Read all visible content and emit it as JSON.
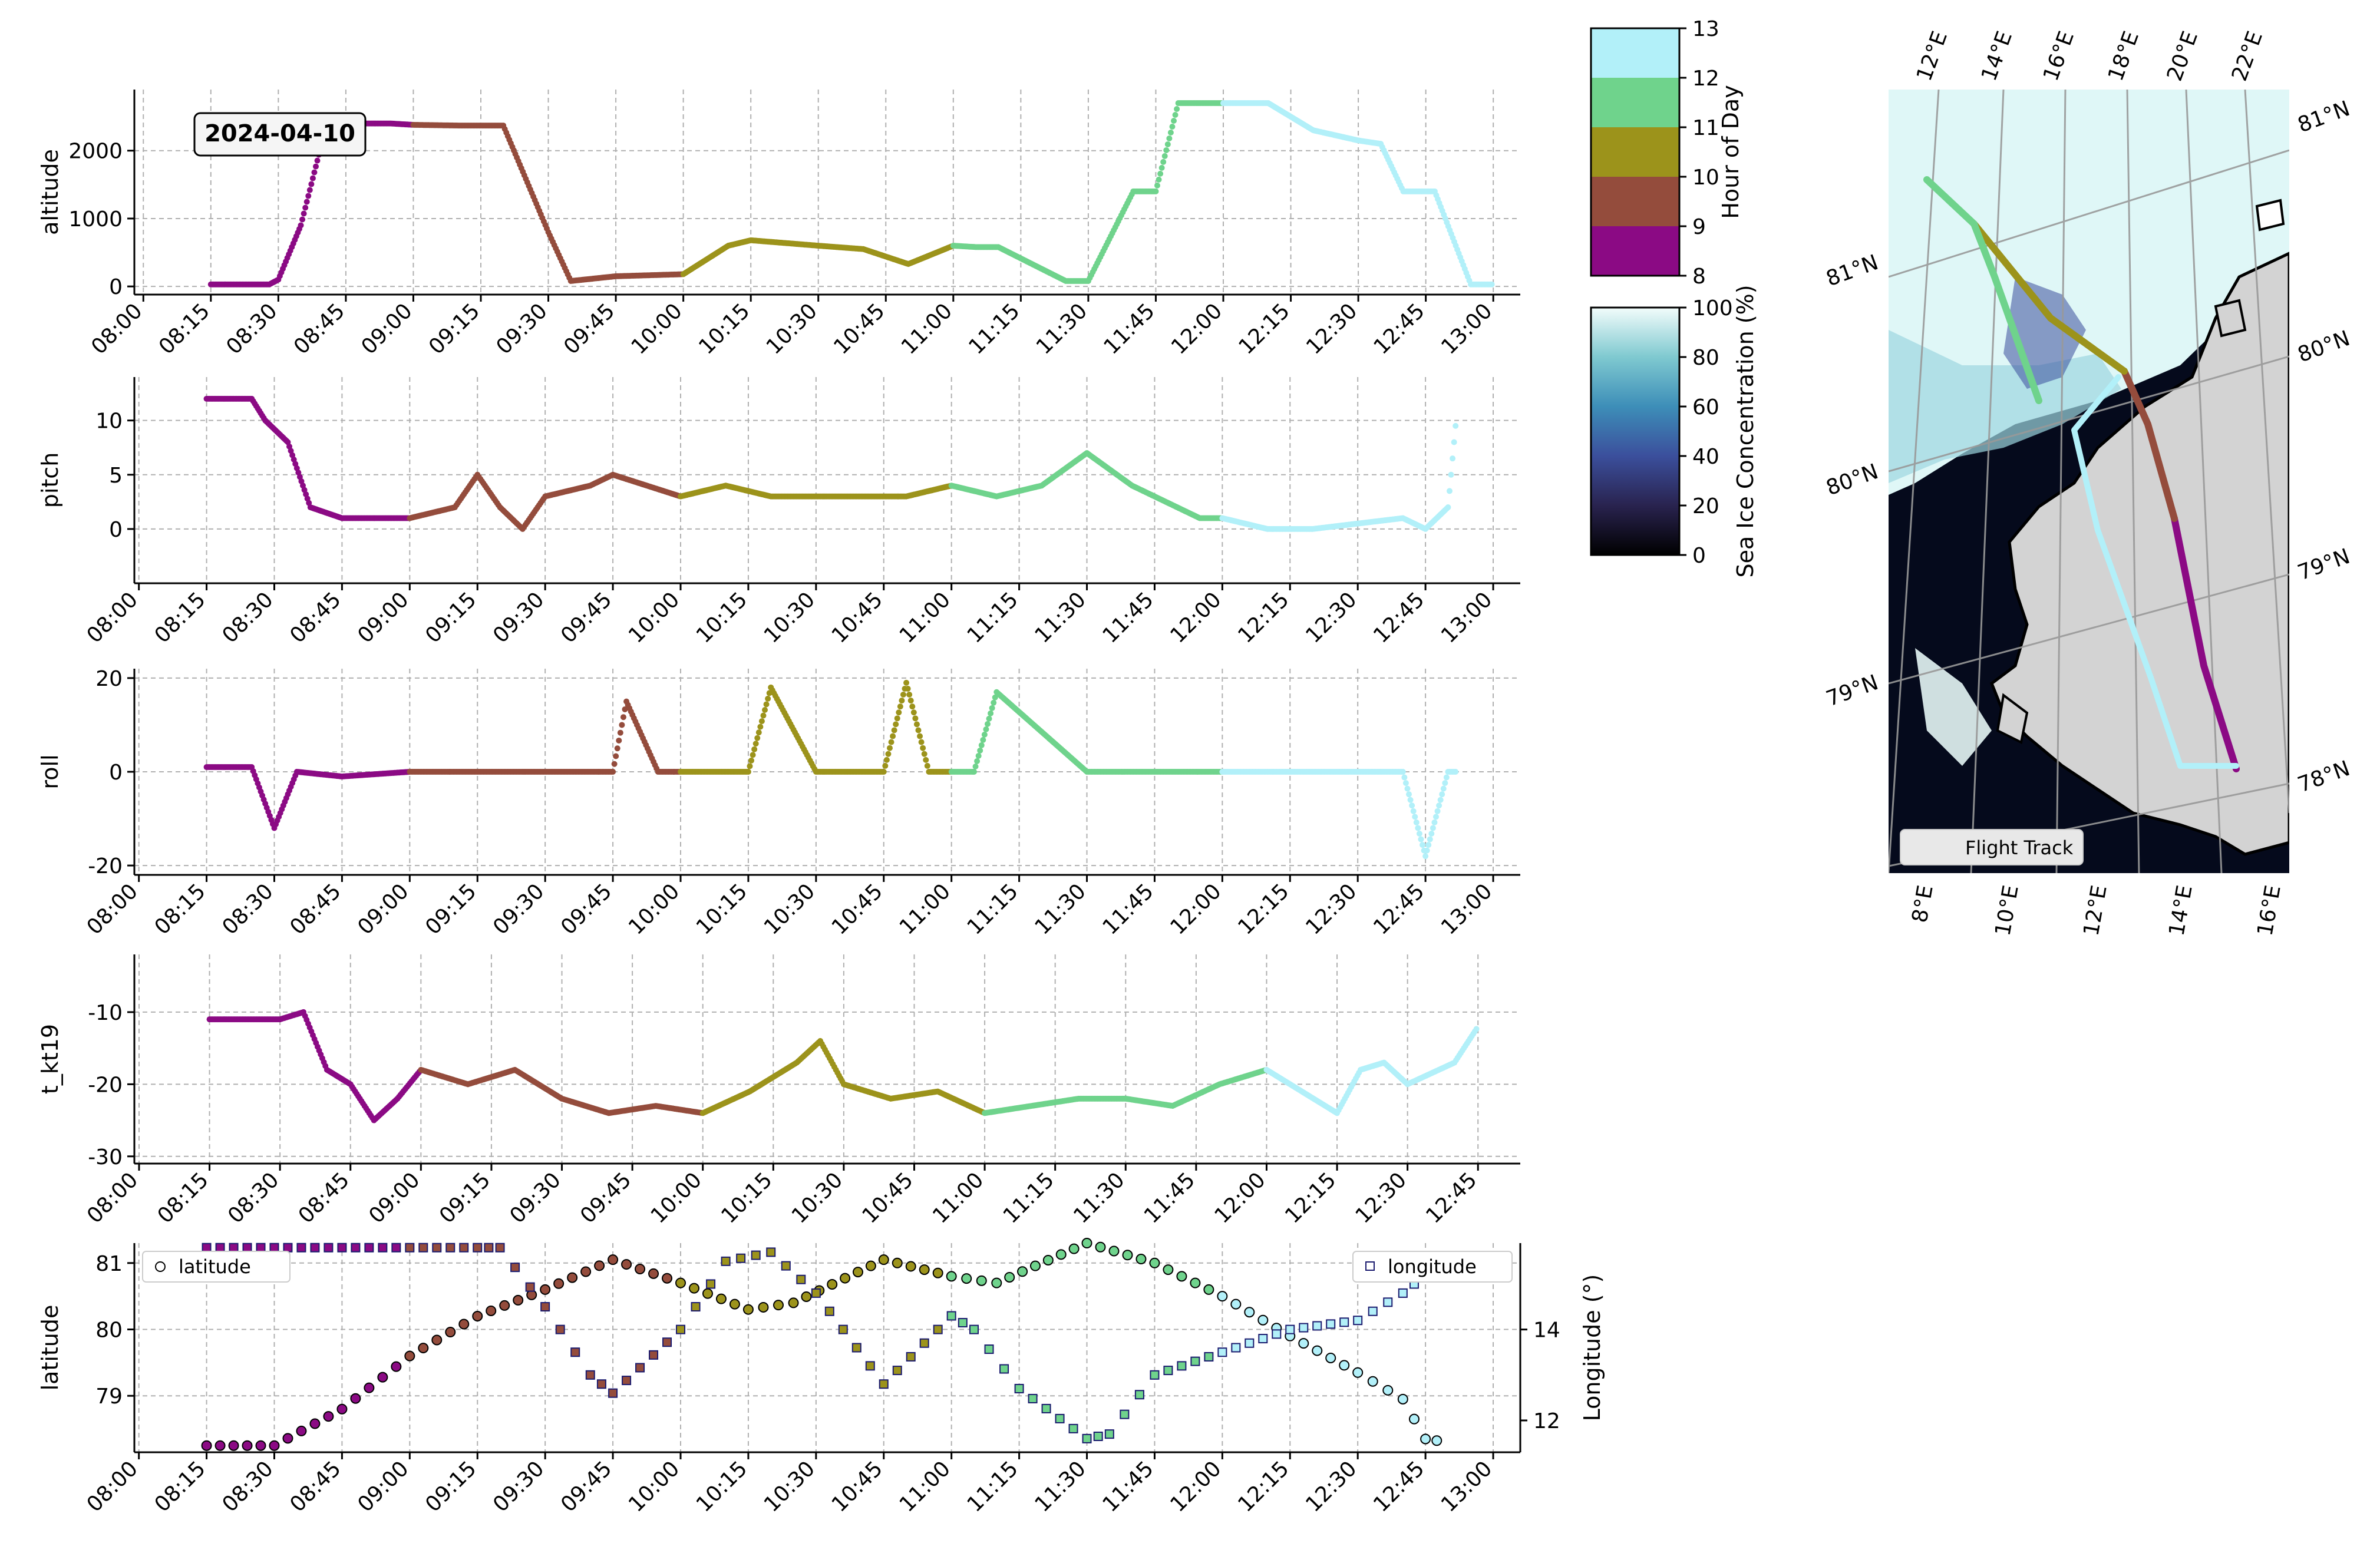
{
  "figure": {
    "date_badge": "2024-04-10",
    "hour_colors": [
      "#8b0a84",
      "#944c3c",
      "#9c931b",
      "#6fd38c",
      "#b2f0f9"
    ]
  },
  "hour_colorbar": {
    "label": "Hour of Day",
    "ticks": [
      "8",
      "9",
      "10",
      "11",
      "12",
      "13"
    ]
  },
  "ice_colorbar": {
    "label": "Sea Ice Concentration (%)",
    "ticks": [
      "0",
      "20",
      "40",
      "60",
      "80",
      "100"
    ]
  },
  "map": {
    "legend_label": "Flight Track",
    "top_lon_labels": [
      "12°E",
      "14°E",
      "16°E",
      "18°E",
      "20°E",
      "22°E"
    ],
    "bottom_lon_labels": [
      "8°E",
      "10°E",
      "12°E",
      "14°E",
      "16°E"
    ],
    "left_lat_labels": [
      "81°N",
      "80°N",
      "79°N"
    ],
    "right_lat_labels": [
      "81°N",
      "80°N",
      "79°N",
      "78°N"
    ],
    "colors": {
      "ocean": "#050a1c",
      "land": "#d3d3d3",
      "ice": "#dff7f7",
      "grid": "#999999"
    }
  },
  "chart_data": [
    {
      "type": "scatter",
      "ylabel": "altitude",
      "ylim": [
        -120,
        2900
      ],
      "yticks": [
        0,
        1000,
        2000
      ],
      "xticks": [
        "08:00",
        "08:15",
        "08:30",
        "08:45",
        "09:00",
        "09:15",
        "09:30",
        "09:45",
        "10:00",
        "10:15",
        "10:30",
        "10:45",
        "11:00",
        "11:15",
        "11:30",
        "11:45",
        "12:00",
        "12:15",
        "12:30",
        "12:45",
        "13:00"
      ],
      "xlim": [
        "07:58",
        "13:06"
      ],
      "grid": true,
      "series": [
        {
          "x": [
            "08:15",
            "08:28",
            "08:30",
            "08:35",
            "08:40",
            "08:45",
            "08:55",
            "09:00",
            "09:10",
            "09:20",
            "09:30",
            "09:35",
            "09:45",
            "10:00",
            "10:10",
            "10:15",
            "10:30",
            "10:40",
            "10:50",
            "11:00",
            "11:05",
            "11:10",
            "11:25",
            "11:30",
            "11:40",
            "11:45",
            "11:50",
            "12:00",
            "12:10",
            "12:20",
            "12:30",
            "12:35",
            "12:40",
            "12:47",
            "12:55",
            "13:00"
          ],
          "y": [
            30,
            30,
            100,
            900,
            2200,
            2400,
            2400,
            2380,
            2370,
            2370,
            800,
            80,
            150,
            180,
            600,
            680,
            600,
            550,
            330,
            600,
            580,
            580,
            80,
            80,
            1400,
            1400,
            2700,
            2700,
            2700,
            2300,
            2150,
            2100,
            1400,
            1400,
            30,
            30
          ]
        }
      ]
    },
    {
      "type": "scatter",
      "ylabel": "pitch",
      "ylim": [
        -5,
        14
      ],
      "yticks": [
        0,
        5,
        10
      ],
      "xticks": [
        "08:00",
        "08:15",
        "08:30",
        "08:45",
        "09:00",
        "09:15",
        "09:30",
        "09:45",
        "10:00",
        "10:15",
        "10:30",
        "10:45",
        "11:00",
        "11:15",
        "11:30",
        "11:45",
        "12:00",
        "12:15",
        "12:30",
        "12:45",
        "13:00"
      ],
      "xlim": [
        "07:59",
        "13:06"
      ],
      "grid": true,
      "series": [
        {
          "x": [
            "08:15",
            "08:25",
            "08:28",
            "08:33",
            "08:38",
            "08:45",
            "09:00",
            "09:10",
            "09:15",
            "09:20",
            "09:25",
            "09:30",
            "09:40",
            "09:45",
            "10:00",
            "10:10",
            "10:20",
            "10:30",
            "10:40",
            "10:50",
            "11:00",
            "11:10",
            "11:20",
            "11:30",
            "11:40",
            "11:55",
            "12:00",
            "12:10",
            "12:20",
            "12:30",
            "12:40",
            "12:45",
            "12:50",
            "12:52"
          ],
          "y": [
            12,
            12,
            10,
            8,
            2,
            1,
            1,
            2,
            5,
            2,
            0,
            3,
            4,
            5,
            3,
            4,
            3,
            3,
            3,
            3,
            4,
            3,
            4,
            7,
            4,
            1,
            1,
            0,
            0,
            0.5,
            1,
            0,
            2,
            11
          ]
        }
      ]
    },
    {
      "type": "scatter",
      "ylabel": "roll",
      "ylim": [
        -22,
        22
      ],
      "yticks": [
        -20,
        0,
        20
      ],
      "xticks": [
        "08:00",
        "08:15",
        "08:30",
        "08:45",
        "09:00",
        "09:15",
        "09:30",
        "09:45",
        "10:00",
        "10:15",
        "10:30",
        "10:45",
        "11:00",
        "11:15",
        "11:30",
        "11:45",
        "12:00",
        "12:15",
        "12:30",
        "12:45",
        "13:00"
      ],
      "xlim": [
        "07:59",
        "13:06"
      ],
      "grid": true,
      "series": [
        {
          "x": [
            "08:15",
            "08:25",
            "08:30",
            "08:35",
            "08:45",
            "09:00",
            "09:30",
            "09:45",
            "09:48",
            "09:55",
            "10:00",
            "10:15",
            "10:20",
            "10:30",
            "10:45",
            "10:50",
            "10:55",
            "11:00",
            "11:05",
            "11:10",
            "11:30",
            "11:40",
            "12:00",
            "12:15",
            "12:30",
            "12:40",
            "12:45",
            "12:50",
            "12:52"
          ],
          "y": [
            1,
            1,
            -12,
            0,
            -1,
            0,
            0,
            0,
            15,
            0,
            0,
            0,
            18,
            0,
            0,
            19,
            0,
            0,
            0,
            17,
            0,
            0,
            0,
            0,
            0,
            0,
            -18,
            0,
            0
          ]
        }
      ]
    },
    {
      "type": "scatter",
      "ylabel": "t_kt19",
      "ylim": [
        -31,
        -2
      ],
      "yticks": [
        -30,
        -20,
        -10
      ],
      "xticks": [
        "08:00",
        "08:15",
        "08:30",
        "08:45",
        "09:00",
        "09:15",
        "09:30",
        "09:45",
        "10:00",
        "10:15",
        "10:30",
        "10:45",
        "11:00",
        "11:15",
        "11:30",
        "11:45",
        "12:00",
        "12:15",
        "12:30",
        "12:45"
      ],
      "xlim": [
        "07:59",
        "12:54"
      ],
      "grid": true,
      "series": [
        {
          "x": [
            "08:15",
            "08:30",
            "08:35",
            "08:40",
            "08:45",
            "08:50",
            "08:55",
            "09:00",
            "09:10",
            "09:20",
            "09:30",
            "09:40",
            "09:50",
            "10:00",
            "10:10",
            "10:20",
            "10:25",
            "10:30",
            "10:40",
            "10:50",
            "11:00",
            "11:10",
            "11:20",
            "11:30",
            "11:40",
            "11:50",
            "12:00",
            "12:05",
            "12:10",
            "12:15",
            "12:20",
            "12:25",
            "12:30",
            "12:40",
            "12:45"
          ],
          "y": [
            -11,
            -11,
            -10,
            -18,
            -20,
            -25,
            -22,
            -18,
            -20,
            -18,
            -22,
            -24,
            -23,
            -24,
            -21,
            -17,
            -14,
            -20,
            -22,
            -21,
            -24,
            -23,
            -22,
            -22,
            -23,
            -20,
            -18,
            -20,
            -22,
            -24,
            -18,
            -17,
            -20,
            -17,
            -12
          ]
        }
      ]
    },
    {
      "type": "scatter",
      "ylabel": "latitude",
      "ylabel_right": "Longitude (°)",
      "ylim": [
        78.15,
        81.3
      ],
      "yticks": [
        79,
        80,
        81
      ],
      "ylim_right": [
        11.3,
        15.9
      ],
      "yticks_right": [
        12,
        14
      ],
      "xticks": [
        "08:00",
        "08:15",
        "08:30",
        "08:45",
        "09:00",
        "09:15",
        "09:30",
        "09:45",
        "10:00",
        "10:15",
        "10:30",
        "10:45",
        "11:00",
        "11:15",
        "11:30",
        "11:45",
        "12:00",
        "12:15",
        "12:30",
        "12:45",
        "13:00"
      ],
      "xlim": [
        "07:59",
        "13:06"
      ],
      "grid": true,
      "legend": [
        {
          "name": "latitude",
          "placement": "upper left"
        },
        {
          "name": "longitude",
          "placement": "upper right"
        }
      ],
      "series": [
        {
          "name": "latitude",
          "x": [
            "08:15",
            "08:30",
            "08:45",
            "09:00",
            "09:15",
            "09:30",
            "09:45",
            "10:00",
            "10:15",
            "10:25",
            "10:45",
            "11:00",
            "11:10",
            "11:30",
            "11:45",
            "12:00",
            "12:15",
            "12:30",
            "12:40",
            "12:45",
            "12:50"
          ],
          "y": [
            78.25,
            78.25,
            78.8,
            79.6,
            80.2,
            80.6,
            81.05,
            80.7,
            80.3,
            80.4,
            81.05,
            80.8,
            80.7,
            81.3,
            81.0,
            80.5,
            79.9,
            79.35,
            78.95,
            78.35,
            78.3
          ]
        },
        {
          "name": "longitude",
          "x": [
            "08:15",
            "08:30",
            "08:45",
            "09:00",
            "09:15",
            "09:20",
            "09:30",
            "09:40",
            "09:45",
            "10:00",
            "10:10",
            "10:20",
            "10:30",
            "10:45",
            "11:00",
            "11:05",
            "11:15",
            "11:30",
            "11:35",
            "11:45",
            "12:00",
            "12:15",
            "12:30",
            "12:40",
            "12:45",
            "12:50"
          ],
          "y": [
            15.8,
            15.8,
            15.8,
            15.8,
            15.8,
            15.8,
            14.5,
            13.0,
            12.6,
            14.0,
            15.5,
            15.7,
            14.8,
            12.8,
            14.3,
            14.0,
            12.7,
            11.6,
            11.7,
            13.0,
            13.5,
            14.0,
            14.2,
            14.8,
            15.2,
            15.7
          ]
        }
      ]
    }
  ]
}
